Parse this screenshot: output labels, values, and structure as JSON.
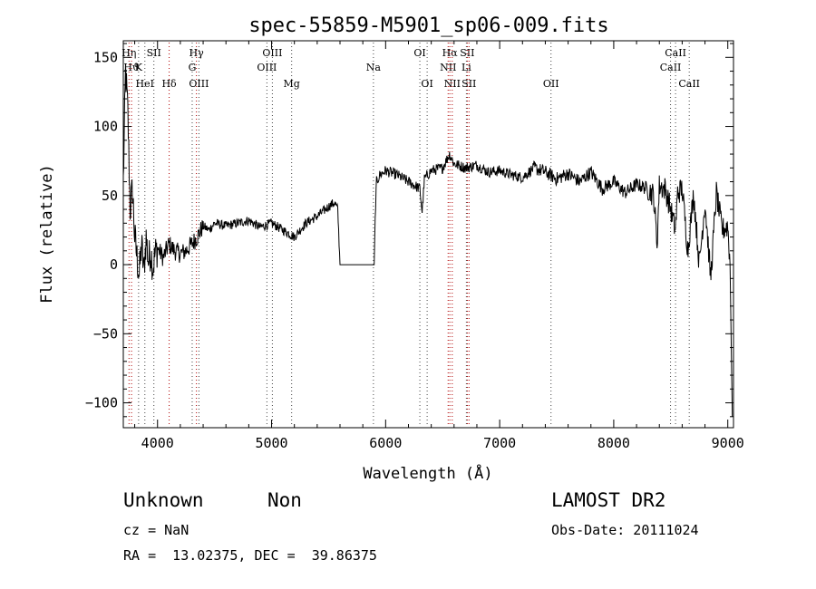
{
  "chart_data": {
    "type": "line",
    "title": "spec-55859-M5901_sp06-009.fits",
    "xlabel": "Wavelength (Å)",
    "ylabel": "Flux (relative)",
    "xlim": [
      3700,
      9050
    ],
    "ylim": [
      -118,
      162
    ],
    "xticks": [
      4000,
      5000,
      6000,
      7000,
      8000,
      9000
    ],
    "xtick_labels": [
      "4000",
      "5000",
      "6000",
      "7000",
      "8000",
      "9000"
    ],
    "yticks": [
      -100,
      -50,
      0,
      50,
      100,
      150
    ],
    "ytick_labels": [
      "−100",
      "−50",
      "0",
      "50",
      "100",
      "150"
    ],
    "series": [
      {
        "x": [
          3700,
          3720,
          3740,
          3760,
          3780,
          3800,
          3820,
          3840,
          3860,
          3880,
          3900,
          3920,
          3940,
          3960,
          3980,
          4000,
          4050,
          4100,
          4150,
          4200,
          4250,
          4300,
          4350,
          4400,
          4450,
          4500,
          4600,
          4700,
          4800,
          4900,
          5000,
          5100,
          5200,
          5300,
          5400,
          5500,
          5550,
          5580,
          5590,
          5600,
          5900,
          5910,
          5920,
          5950,
          6000,
          6100,
          6200,
          6300,
          6320,
          6340,
          6400,
          6500,
          6560,
          6600,
          6700,
          6800,
          6900,
          7000,
          7100,
          7200,
          7300,
          7400,
          7500,
          7600,
          7700,
          7800,
          7900,
          8000,
          8100,
          8200,
          8300,
          8350,
          8380,
          8400,
          8450,
          8500,
          8540,
          8560,
          8600,
          8650,
          8700,
          8750,
          8800,
          8850,
          8900,
          8950,
          9000,
          9020,
          9040
        ],
        "y": [
          60,
          140,
          110,
          40,
          55,
          20,
          5,
          -8,
          15,
          -5,
          20,
          2,
          10,
          -2,
          8,
          12,
          5,
          15,
          10,
          8,
          10,
          15,
          20,
          28,
          25,
          30,
          28,
          30,
          32,
          27,
          30,
          25,
          20,
          30,
          35,
          42,
          45,
          40,
          20,
          0,
          0,
          40,
          60,
          65,
          68,
          65,
          60,
          55,
          38,
          62,
          68,
          70,
          80,
          73,
          70,
          72,
          67,
          68,
          65,
          63,
          70,
          67,
          62,
          66,
          60,
          67,
          55,
          60,
          52,
          58,
          55,
          50,
          15,
          57,
          55,
          40,
          25,
          52,
          55,
          10,
          52,
          0,
          45,
          -10,
          52,
          25,
          28,
          0,
          -110
        ]
      }
    ],
    "lines": [
      {
        "x": 3750,
        "label": "Hη",
        "row": 0,
        "color": "#b00000"
      },
      {
        "x": 3772,
        "label": "Hϑ",
        "row": 1,
        "color": "#b00000"
      },
      {
        "x": 3834,
        "label": "K",
        "row": 1,
        "color": "#444444"
      },
      {
        "x": 3889,
        "label": "HeI",
        "row": 2,
        "color": "#444444"
      },
      {
        "x": 3968,
        "label": "SII",
        "row": 0,
        "color": "#444444"
      },
      {
        "x": 4102,
        "label": "Hδ",
        "row": 2,
        "color": "#b00000"
      },
      {
        "x": 4304,
        "label": "G",
        "row": 1,
        "color": "#444444"
      },
      {
        "x": 4341,
        "label": "Hγ",
        "row": 0,
        "color": "#b00000"
      },
      {
        "x": 4363,
        "label": "OIII",
        "row": 2,
        "color": "#444444"
      },
      {
        "x": 4959,
        "label": "OIII",
        "row": 1,
        "color": "#444444"
      },
      {
        "x": 5007,
        "label": "OIII",
        "row": 0,
        "color": "#444444"
      },
      {
        "x": 5176,
        "label": "Mg",
        "row": 2,
        "color": "#444444"
      },
      {
        "x": 5893,
        "label": "Na",
        "row": 1,
        "color": "#444444"
      },
      {
        "x": 6300,
        "label": "OI",
        "row": 0,
        "color": "#444444"
      },
      {
        "x": 6364,
        "label": "OI",
        "row": 2,
        "color": "#444444"
      },
      {
        "x": 6548,
        "label": "NII",
        "row": 1,
        "color": "#b00000"
      },
      {
        "x": 6563,
        "label": "Hα",
        "row": 0,
        "color": "#b00000"
      },
      {
        "x": 6584,
        "label": "NII",
        "row": 2,
        "color": "#b00000"
      },
      {
        "x": 6708,
        "label": "Li",
        "row": 1,
        "color": "#444444"
      },
      {
        "x": 6716,
        "label": "SII",
        "row": 0,
        "color": "#b00000"
      },
      {
        "x": 6731,
        "label": "SII",
        "row": 2,
        "color": "#b00000"
      },
      {
        "x": 7450,
        "label": "OII",
        "row": 2,
        "color": "#444444"
      },
      {
        "x": 8498,
        "label": "CaII",
        "row": 1,
        "color": "#444444"
      },
      {
        "x": 8542,
        "label": "CaII",
        "row": 0,
        "color": "#444444"
      },
      {
        "x": 8662,
        "label": "CaII",
        "row": 2,
        "color": "#444444"
      }
    ]
  },
  "info": {
    "class_label": "Unknown",
    "subclass_label": "Non",
    "survey_label": "LAMOST DR2",
    "cz_text": "cz = NaN",
    "obs_date_text": "Obs-Date: 20111024",
    "coords_text": "RA =  13.02375, DEC =  39.86375"
  }
}
